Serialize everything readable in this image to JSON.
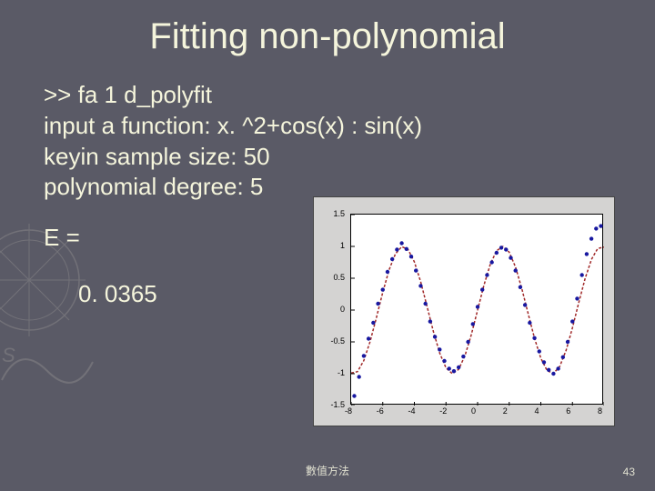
{
  "title": "Fitting non-polynomial",
  "lines": {
    "l1": ">> fa 1 d_polyfit",
    "l2": "input a function: x. ^2+cos(x) : sin(x)",
    "l3": "keyin sample size: 50",
    "l4": "polynomial degree: 5",
    "l5": "E =",
    "l6": "0. 0365"
  },
  "footer": "數值方法",
  "page": "43",
  "chart": {
    "type": "line+scatter",
    "background_color": "#d4d3d2",
    "plot_background": "#ffffff",
    "grid_color": "#cccccc",
    "border_color": "#000000",
    "xlim": [
      -8,
      8
    ],
    "ylim": [
      -1.5,
      1.5
    ],
    "xticks": [
      -8,
      -6,
      -4,
      -2,
      0,
      2,
      4,
      6,
      8
    ],
    "yticks": [
      -1.5,
      -1,
      -0.5,
      0,
      0.5,
      1,
      1.5
    ],
    "ytick_labels": [
      "-1.5",
      "-1",
      "-0.5",
      "0",
      "0.5",
      "1",
      "1.5"
    ],
    "curve": {
      "color": "#a02828",
      "width": 1.5,
      "dash": "3,2",
      "points": [
        [
          -8,
          -0.989
        ],
        [
          -7.6,
          -0.968
        ],
        [
          -7.2,
          -0.794
        ],
        [
          -6.8,
          -0.494
        ],
        [
          -6.4,
          -0.117
        ],
        [
          -6,
          0.279
        ],
        [
          -5.6,
          0.632
        ],
        [
          -5.2,
          0.883
        ],
        [
          -4.8,
          0.996
        ],
        [
          -4.4,
          0.952
        ],
        [
          -4,
          0.757
        ],
        [
          -3.6,
          0.443
        ],
        [
          -3.2,
          0.058
        ],
        [
          -2.8,
          -0.335
        ],
        [
          -2.4,
          -0.675
        ],
        [
          -2,
          -0.909
        ],
        [
          -1.6,
          -0.9996
        ],
        [
          -1.2,
          -0.932
        ],
        [
          -0.8,
          -0.717
        ],
        [
          -0.4,
          -0.389
        ],
        [
          0,
          0
        ],
        [
          0.4,
          0.389
        ],
        [
          0.8,
          0.717
        ],
        [
          1.2,
          0.932
        ],
        [
          1.6,
          0.9996
        ],
        [
          2,
          0.909
        ],
        [
          2.4,
          0.675
        ],
        [
          2.8,
          0.335
        ],
        [
          3.2,
          -0.058
        ],
        [
          3.6,
          -0.443
        ],
        [
          4,
          -0.757
        ],
        [
          4.4,
          -0.952
        ],
        [
          4.8,
          -0.996
        ],
        [
          5.2,
          -0.883
        ],
        [
          5.6,
          -0.632
        ],
        [
          6,
          -0.279
        ],
        [
          6.4,
          0.117
        ],
        [
          6.8,
          0.494
        ],
        [
          7.2,
          0.794
        ],
        [
          7.6,
          0.968
        ],
        [
          8,
          0.989
        ]
      ]
    },
    "scatter": {
      "color": "#1818a0",
      "marker_size": 2.2,
      "points": [
        [
          -7.8,
          -1.35
        ],
        [
          -7.5,
          -1.05
        ],
        [
          -7.2,
          -0.72
        ],
        [
          -6.9,
          -0.45
        ],
        [
          -6.6,
          -0.2
        ],
        [
          -6.3,
          0.1
        ],
        [
          -6.0,
          0.32
        ],
        [
          -5.7,
          0.6
        ],
        [
          -5.4,
          0.8
        ],
        [
          -5.1,
          0.95
        ],
        [
          -4.8,
          1.05
        ],
        [
          -4.5,
          0.96
        ],
        [
          -4.2,
          0.84
        ],
        [
          -3.9,
          0.62
        ],
        [
          -3.6,
          0.38
        ],
        [
          -3.3,
          0.1
        ],
        [
          -3.0,
          -0.18
        ],
        [
          -2.7,
          -0.42
        ],
        [
          -2.4,
          -0.62
        ],
        [
          -2.1,
          -0.8
        ],
        [
          -1.8,
          -0.92
        ],
        [
          -1.5,
          -0.96
        ],
        [
          -1.2,
          -0.9
        ],
        [
          -0.9,
          -0.73
        ],
        [
          -0.6,
          -0.5
        ],
        [
          -0.3,
          -0.22
        ],
        [
          0.0,
          0.05
        ],
        [
          0.3,
          0.32
        ],
        [
          0.6,
          0.55
        ],
        [
          0.9,
          0.75
        ],
        [
          1.2,
          0.9
        ],
        [
          1.5,
          0.98
        ],
        [
          1.8,
          0.95
        ],
        [
          2.1,
          0.82
        ],
        [
          2.4,
          0.62
        ],
        [
          2.7,
          0.36
        ],
        [
          3.0,
          0.08
        ],
        [
          3.3,
          -0.2
        ],
        [
          3.6,
          -0.44
        ],
        [
          3.9,
          -0.65
        ],
        [
          4.2,
          -0.82
        ],
        [
          4.5,
          -0.94
        ],
        [
          4.8,
          -1.0
        ],
        [
          5.1,
          -0.92
        ],
        [
          5.4,
          -0.74
        ],
        [
          5.7,
          -0.5
        ],
        [
          6.0,
          -0.18
        ],
        [
          6.3,
          0.18
        ],
        [
          6.6,
          0.55
        ],
        [
          6.9,
          0.88
        ],
        [
          7.2,
          1.12
        ],
        [
          7.5,
          1.28
        ],
        [
          7.8,
          1.32
        ]
      ]
    }
  }
}
